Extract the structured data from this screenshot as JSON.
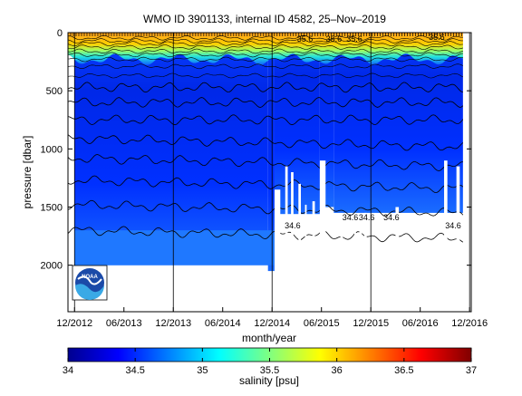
{
  "chart_data": {
    "type": "heatmap",
    "title": "WMO ID 3901133, internal ID 4582, 25–Nov–2019",
    "xlabel": "month/year",
    "ylabel": "pressure [dbar]",
    "colorbar_label": "salinity [psu]",
    "x_ticks": [
      "12/2012",
      "06/2013",
      "12/2013",
      "06/2014",
      "12/2014",
      "06/2015",
      "12/2015",
      "06/2016",
      "12/2016"
    ],
    "y_ticks": [
      0,
      500,
      1000,
      1500,
      2000
    ],
    "y_range": [
      0,
      2400
    ],
    "color_ticks": [
      "34",
      "34.5",
      "35",
      "35.5",
      "36",
      "36.5",
      "37"
    ],
    "color_range": [
      34,
      37
    ],
    "colormap": [
      "#00008f",
      "#0000ff",
      "#0080ff",
      "#00ffff",
      "#80ff80",
      "#ffff00",
      "#ff8000",
      "#ff0000",
      "#800000"
    ],
    "isohaline_depths": [
      45,
      70,
      95,
      125,
      160,
      190,
      230,
      290,
      370,
      470,
      600,
      750,
      910,
      1080,
      1270,
      1480,
      1700
    ],
    "contour_labels": [
      {
        "text": "35.6",
        "month": 28.0,
        "pressure": 45
      },
      {
        "text": "35.6",
        "month": 31.5,
        "pressure": 45
      },
      {
        "text": "35.6",
        "month": 34.0,
        "pressure": 45
      },
      {
        "text": "35.6",
        "month": 44.0,
        "pressure": 30
      },
      {
        "text": "34.6",
        "month": 26.5,
        "pressure": 1650
      },
      {
        "text": "34.6",
        "month": 33.5,
        "pressure": 1580
      },
      {
        "text": "34.6",
        "month": 35.5,
        "pressure": 1580
      },
      {
        "text": "34.6",
        "month": 38.5,
        "pressure": 1580
      },
      {
        "text": "34.6",
        "month": 46.0,
        "pressure": 1650
      }
    ],
    "max_profile_depth": 2000,
    "data_gaps": [
      {
        "start_month": 24.3,
        "end_month": 25.0,
        "bottom": 1350
      },
      {
        "start_month": 25.6,
        "end_month": 25.9,
        "bottom": 1150
      },
      {
        "start_month": 26.3,
        "end_month": 26.6,
        "bottom": 1200
      },
      {
        "start_month": 27.2,
        "end_month": 27.5,
        "bottom": 1300
      },
      {
        "start_month": 28.0,
        "end_month": 28.2,
        "bottom": 1480
      },
      {
        "start_month": 28.9,
        "end_month": 29.2,
        "bottom": 1450
      },
      {
        "start_month": 29.8,
        "end_month": 30.5,
        "bottom": 1100
      },
      {
        "start_month": 32.3,
        "end_month": 32.6,
        "bottom": 1600
      },
      {
        "start_month": 34.0,
        "end_month": 34.2,
        "bottom": 1550
      },
      {
        "start_month": 34.6,
        "end_month": 34.9,
        "bottom": 1580
      },
      {
        "start_month": 35.2,
        "end_month": 35.5,
        "bottom": 1550
      },
      {
        "start_month": 39.0,
        "end_month": 39.4,
        "bottom": 1500
      },
      {
        "start_month": 44.9,
        "end_month": 45.3,
        "bottom": 1100
      },
      {
        "start_month": 46.4,
        "end_month": 46.8,
        "bottom": 1150
      }
    ],
    "deep_extent": [
      {
        "start_month": 0,
        "end_month": 23.5,
        "bottom": 2000
      },
      {
        "start_month": 23.5,
        "end_month": 24.3,
        "bottom": 2050
      },
      {
        "start_month": 24.3,
        "end_month": 29.8,
        "bottom": 1560
      },
      {
        "start_month": 29.8,
        "end_month": 31.5,
        "bottom": 1500
      },
      {
        "start_month": 31.5,
        "end_month": 47.2,
        "bottom": 1550
      }
    ],
    "deep_isolines": [
      {
        "start_month": 0,
        "end_month": 24.3,
        "bottom": 2000,
        "top": 1700
      }
    ]
  },
  "logo": {
    "text": "NOAA"
  }
}
